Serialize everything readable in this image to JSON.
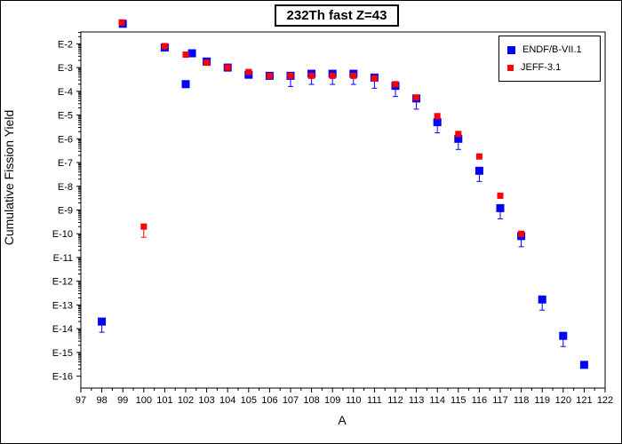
{
  "chart_data": {
    "type": "scatter",
    "title": "232Th fast Z=43",
    "xlabel": "A",
    "ylabel": "Cumulative Fission Yield",
    "xlim": [
      97,
      122
    ],
    "x_ticks": [
      "97",
      "98",
      "99",
      "100",
      "101",
      "102",
      "103",
      "104",
      "105",
      "106",
      "107",
      "108",
      "109",
      "110",
      "111",
      "112",
      "113",
      "114",
      "115",
      "116",
      "117",
      "118",
      "119",
      "120",
      "121",
      "122"
    ],
    "ylim_exponent": [
      -16.5,
      -1.5
    ],
    "y_ticks": [
      "E-2",
      "E-3",
      "E-4",
      "E-5",
      "E-6",
      "E-7",
      "E-8",
      "E-9",
      "E-10",
      "E-11",
      "E-12",
      "E-13",
      "E-14",
      "E-15",
      "E-16"
    ],
    "y_scale": "log",
    "grid": false,
    "legend_position": "top-right",
    "series": [
      {
        "name": "ENDF/B-VII.1",
        "color": "#0000ff",
        "marker": "square",
        "points": [
          {
            "x": 98,
            "y": 2e-14,
            "err": true
          },
          {
            "x": 99,
            "y": 0.07,
            "err": false
          },
          {
            "x": 101,
            "y": 0.007,
            "err": false
          },
          {
            "x": 102,
            "y": 0.0002,
            "err": false
          },
          {
            "x": 102.3,
            "y": 0.004,
            "err": false
          },
          {
            "x": 103,
            "y": 0.0018,
            "err": false
          },
          {
            "x": 104,
            "y": 0.001,
            "err": false
          },
          {
            "x": 105,
            "y": 0.0005,
            "err": false
          },
          {
            "x": 106,
            "y": 0.00045,
            "err": false
          },
          {
            "x": 107,
            "y": 0.00045,
            "err": true
          },
          {
            "x": 108,
            "y": 0.00055,
            "err": true
          },
          {
            "x": 109,
            "y": 0.00055,
            "err": true
          },
          {
            "x": 110,
            "y": 0.00055,
            "err": true
          },
          {
            "x": 111,
            "y": 0.00038,
            "err": true
          },
          {
            "x": 112,
            "y": 0.00017,
            "err": true
          },
          {
            "x": 113,
            "y": 5e-05,
            "err": true
          },
          {
            "x": 114,
            "y": 5e-06,
            "err": true
          },
          {
            "x": 115,
            "y": 1e-06,
            "err": true
          },
          {
            "x": 116,
            "y": 4.5e-08,
            "err": true
          },
          {
            "x": 117,
            "y": 1.2e-09,
            "err": true
          },
          {
            "x": 118,
            "y": 8e-11,
            "err": true
          },
          {
            "x": 119,
            "y": 1.7e-13,
            "err": true
          },
          {
            "x": 120,
            "y": 5e-15,
            "err": true
          },
          {
            "x": 121,
            "y": 3e-16,
            "err": false
          }
        ]
      },
      {
        "name": "JEFF-3.1",
        "color": "#ff0000",
        "marker": "square",
        "points": [
          {
            "x": 98.95,
            "y": 0.08,
            "err": false
          },
          {
            "x": 100,
            "y": 2e-10,
            "err": true
          },
          {
            "x": 101,
            "y": 0.008,
            "err": false
          },
          {
            "x": 102,
            "y": 0.0035,
            "err": false
          },
          {
            "x": 103,
            "y": 0.0016,
            "err": false
          },
          {
            "x": 104,
            "y": 0.001,
            "err": false
          },
          {
            "x": 105,
            "y": 0.00065,
            "err": false
          },
          {
            "x": 106,
            "y": 0.00045,
            "err": false
          },
          {
            "x": 107,
            "y": 0.00045,
            "err": false
          },
          {
            "x": 108,
            "y": 0.00045,
            "err": false
          },
          {
            "x": 109,
            "y": 0.00045,
            "err": false
          },
          {
            "x": 110,
            "y": 0.00045,
            "err": false
          },
          {
            "x": 111,
            "y": 0.00035,
            "err": false
          },
          {
            "x": 112,
            "y": 0.0002,
            "err": false
          },
          {
            "x": 113,
            "y": 5.5e-05,
            "err": false
          },
          {
            "x": 114,
            "y": 9e-06,
            "err": false
          },
          {
            "x": 115,
            "y": 1.6e-06,
            "err": false
          },
          {
            "x": 116,
            "y": 1.8e-07,
            "err": false
          },
          {
            "x": 117,
            "y": 4e-09,
            "err": false
          },
          {
            "x": 118,
            "y": 1e-10,
            "err": false
          }
        ]
      }
    ]
  }
}
